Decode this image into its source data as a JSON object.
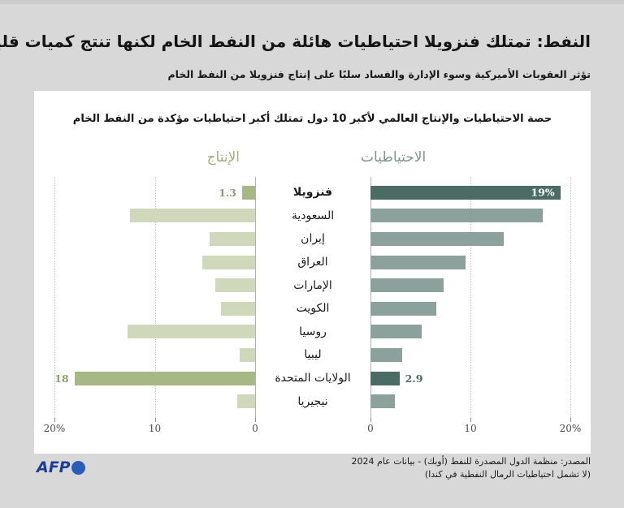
{
  "page": {
    "title": "النفط: تمتلك فنزويلا احتياطيات هائلة من النفط الخام لكنها تنتج كميات قليلة",
    "subtitle": "تؤثر العقوبات الأميركية وسوء الإدارة والفساد سلبًا على إنتاج فنزويلا من النفط الخام"
  },
  "card": {
    "chart_title": "حصة الاحتياطيات والإنتاج العالمي لأكبر 10 دول تمتلك أكبر احتياطيات مؤكدة من النفط الخام"
  },
  "chart_data": {
    "type": "bar",
    "layout": "mirrored-horizontal",
    "unit": "%",
    "xlim": [
      0,
      20
    ],
    "grid": "dotted",
    "categories": [
      "فنزويلا",
      "السعودية",
      "إيران",
      "العراق",
      "الإمارات",
      "الكويت",
      "روسيا",
      "ليبيا",
      "الولايات المتحدة",
      "نيجيريا"
    ],
    "bold_categories": [
      "فنزويلا"
    ],
    "highlight_indices": [
      0,
      8
    ],
    "series": [
      {
        "name": "الإنتاج",
        "side": "left",
        "values": [
          1.3,
          12.5,
          4.5,
          5.3,
          4.0,
          3.4,
          12.7,
          1.5,
          18,
          1.8
        ],
        "labels": [
          "1.3",
          "",
          "",
          "",
          "",
          "",
          "",
          "",
          "18",
          ""
        ],
        "color": "#cfd8bb",
        "highlight_color": "#a6b884",
        "header_color": "#9fb37b",
        "label_color": "#8d9f73"
      },
      {
        "name": "الاحتياطيات",
        "side": "right",
        "values": [
          19,
          17.2,
          13.3,
          9.5,
          7.3,
          6.6,
          5.1,
          3.2,
          2.9,
          2.4
        ],
        "labels": [
          "19%",
          "",
          "",
          "",
          "",
          "",
          "",
          "",
          "2.9",
          ""
        ],
        "label_inside": [
          true,
          false,
          false,
          false,
          false,
          false,
          false,
          false,
          false,
          false
        ],
        "color": "#8ca19c",
        "highlight_color": "#4a6c64",
        "header_color": "#7e948e",
        "label_color": "#4a6c64",
        "inside_label_color": "#ffffff"
      }
    ],
    "ticks_left": [
      "20%",
      "10",
      "0"
    ],
    "ticks_right": [
      "0",
      "10",
      "20%"
    ]
  },
  "footer": {
    "logo_text": "AFP",
    "source_line1": "المصدر: منظمة الدول المصدرة للنفط (أوبك) - بيانات عام 2024",
    "source_line2": "(لا تشمل احتياطيات الرمال النفطية في كندا)"
  }
}
